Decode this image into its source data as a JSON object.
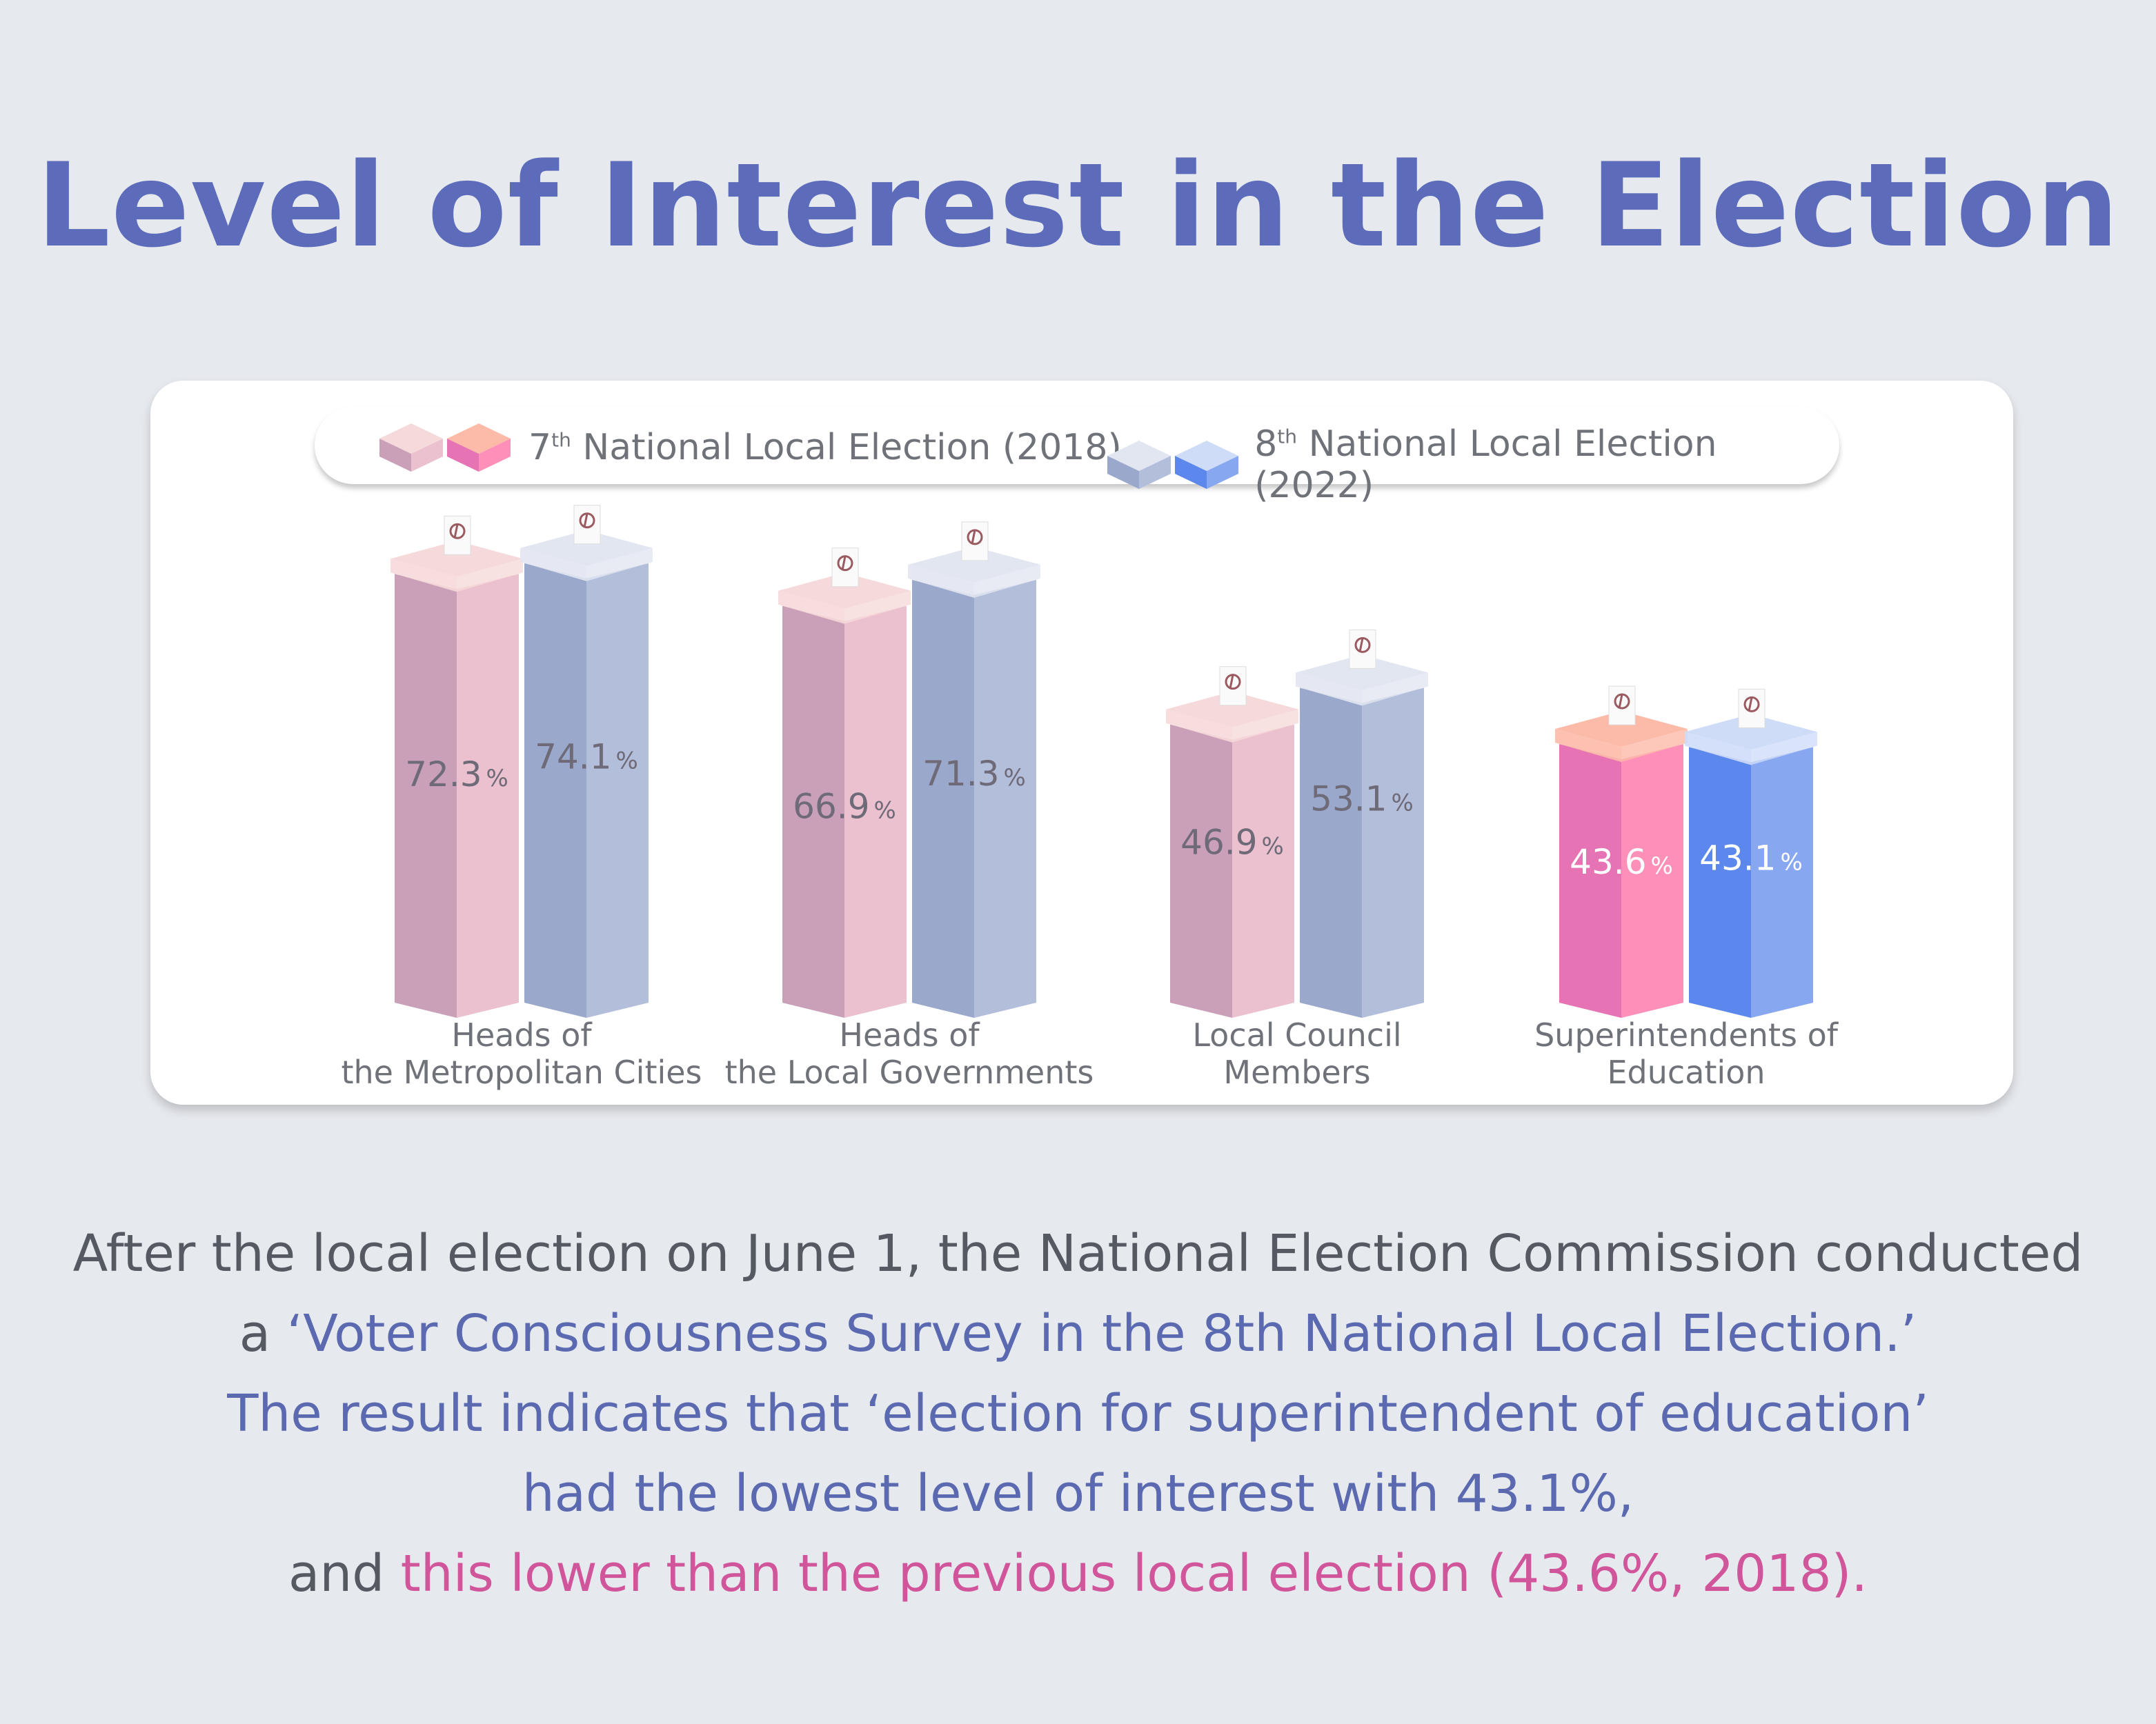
{
  "title": "Level of Interest in the Election",
  "legend": [
    {
      "ordinal": "7",
      "suffix": "th",
      "label": "National Local Election (2018)"
    },
    {
      "ordinal": "8",
      "suffix": "th",
      "label": "National Local Election (2022)"
    }
  ],
  "chart_data": {
    "type": "bar",
    "title": "Level of Interest in the Election",
    "categories": [
      [
        "Heads of",
        "the Metropolitan Cities"
      ],
      [
        "Heads of",
        "the Local Governments"
      ],
      [
        "Local Council",
        "Members"
      ],
      [
        "Superintendents of",
        "Education"
      ]
    ],
    "series": [
      {
        "name": "7th National Local Election (2018)",
        "values": [
          72.3,
          66.9,
          46.9,
          43.6
        ]
      },
      {
        "name": "8th National Local Election (2022)",
        "values": [
          74.1,
          71.3,
          53.1,
          43.1
        ]
      }
    ],
    "unit": "%",
    "colors": {
      "pink": {
        "left": "#c9a0b8",
        "right": "#ebc1cf",
        "lid": "#f6d9da"
      },
      "blue": {
        "left": "#9aa8cc",
        "right": "#b3bedb",
        "lid": "#e2e6f1"
      },
      "pink_hl": {
        "left": "#e673b3",
        "right": "#fd8fb9",
        "lid": "#fcbaa9"
      },
      "blue_hl": {
        "left": "#5c87ec",
        "right": "#88a7f1",
        "lid": "#cfdcf8"
      }
    }
  },
  "paragraph": {
    "l1": "After the local election on June 1, the National Election Commission conducted",
    "l2a": "a ",
    "l2b": "‘Voter Consciousness Survey in the 8th National Local Election.’",
    "l3": "The result indicates that ‘election for superintendent of education’",
    "l4": "had the lowest level of interest with 43.1%,",
    "l5a": "and ",
    "l5b": "this lower than the previous local election (43.6%, 2018)."
  }
}
